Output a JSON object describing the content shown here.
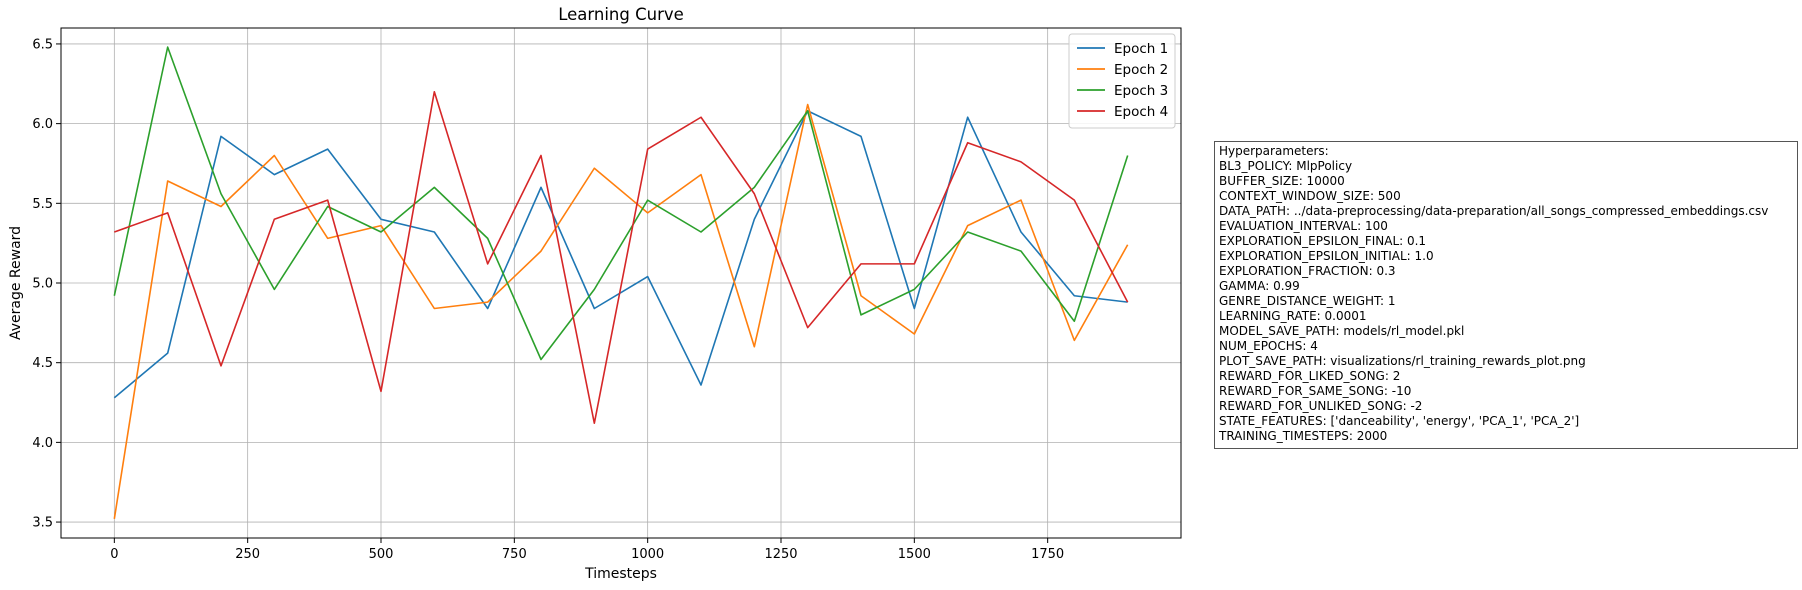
{
  "chart_data": {
    "type": "line",
    "title": "Learning Curve",
    "xlabel": "Timesteps",
    "ylabel": "Average Reward",
    "xlim": [
      -100,
      2000
    ],
    "ylim": [
      3.4,
      6.6
    ],
    "xticks": [
      0,
      250,
      500,
      750,
      1000,
      1250,
      1500,
      1750
    ],
    "xtick_labels": [
      "0",
      "250",
      "500",
      "750",
      "1000",
      "1250",
      "1500",
      "1750"
    ],
    "yticks": [
      3.5,
      4.0,
      4.5,
      5.0,
      5.5,
      6.0,
      6.5
    ],
    "ytick_labels": [
      "3.5",
      "4.0",
      "4.5",
      "5.0",
      "5.5",
      "6.0",
      "6.5"
    ],
    "grid": true,
    "legend_position": "top-right",
    "x": [
      0,
      100,
      200,
      300,
      400,
      500,
      600,
      700,
      800,
      900,
      1000,
      1100,
      1200,
      1300,
      1400,
      1500,
      1600,
      1700,
      1800,
      1900
    ],
    "series": [
      {
        "name": "Epoch 1",
        "color": "#1f77b4",
        "values": [
          4.28,
          4.56,
          5.92,
          5.68,
          5.84,
          5.4,
          5.32,
          4.84,
          5.6,
          4.84,
          5.04,
          4.36,
          5.4,
          6.08,
          5.92,
          4.84,
          6.04,
          5.32,
          4.92,
          4.88
        ]
      },
      {
        "name": "Epoch 2",
        "color": "#ff7f0e",
        "values": [
          3.52,
          5.64,
          5.48,
          5.8,
          5.28,
          5.36,
          4.84,
          4.88,
          5.2,
          5.72,
          5.44,
          5.68,
          4.6,
          6.12,
          4.92,
          4.68,
          5.36,
          5.52,
          4.64,
          5.24
        ]
      },
      {
        "name": "Epoch 3",
        "color": "#2ca02c",
        "values": [
          4.92,
          6.48,
          5.56,
          4.96,
          5.48,
          5.32,
          5.6,
          5.28,
          4.52,
          4.96,
          5.52,
          5.32,
          5.6,
          6.08,
          4.8,
          4.96,
          5.32,
          5.2,
          4.76,
          5.8
        ]
      },
      {
        "name": "Epoch 4",
        "color": "#d62728",
        "values": [
          5.32,
          5.44,
          4.48,
          5.4,
          5.52,
          4.32,
          6.2,
          5.12,
          5.8,
          4.12,
          5.84,
          6.04,
          5.56,
          4.72,
          5.12,
          5.12,
          5.88,
          5.76,
          5.52,
          4.88
        ]
      }
    ]
  },
  "hyperparameters": {
    "lines": [
      "Hyperparameters:",
      "BL3_POLICY: MlpPolicy",
      "BUFFER_SIZE: 10000",
      "CONTEXT_WINDOW_SIZE: 500",
      "DATA_PATH: ../data-preprocessing/data-preparation/all_songs_compressed_embeddings.csv",
      "EVALUATION_INTERVAL: 100",
      "EXPLORATION_EPSILON_FINAL: 0.1",
      "EXPLORATION_EPSILON_INITIAL: 1.0",
      "EXPLORATION_FRACTION: 0.3",
      "GAMMA: 0.99",
      "GENRE_DISTANCE_WEIGHT: 1",
      "LEARNING_RATE: 0.0001",
      "MODEL_SAVE_PATH: models/rl_model.pkl",
      "NUM_EPOCHS: 4",
      "PLOT_SAVE_PATH: visualizations/rl_training_rewards_plot.png",
      "REWARD_FOR_LIKED_SONG: 2",
      "REWARD_FOR_SAME_SONG: -10",
      "REWARD_FOR_UNLIKED_SONG: -2",
      "STATE_FEATURES: ['danceability', 'energy', 'PCA_1', 'PCA_2']",
      "TRAINING_TIMESTEPS: 2000"
    ]
  }
}
